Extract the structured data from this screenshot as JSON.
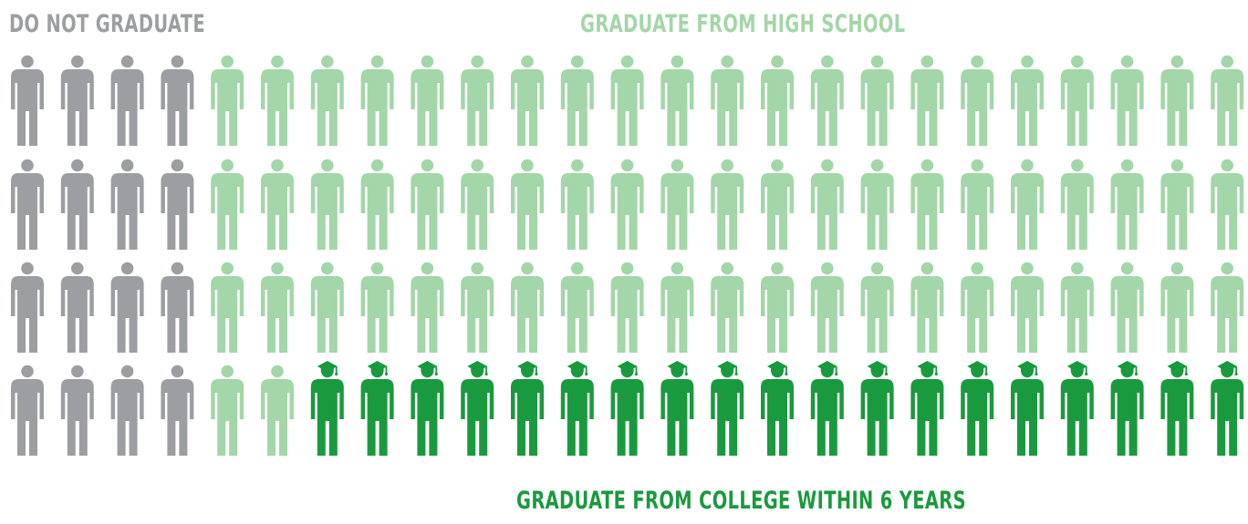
{
  "labels": {
    "do_not_graduate": "DO NOT GRADUATE",
    "graduate_high_school": "GRADUATE FROM HIGH SCHOOL",
    "graduate_college": "GRADUATE FROM COLLEGE WITHIN 6 YEARS"
  },
  "colors": {
    "do_not_graduate": "#9d9ea1",
    "graduate_high_school": "#a3d6a8",
    "graduate_college": "#1a9a3e"
  },
  "chart_data": {
    "type": "pictogram",
    "total_figures": 100,
    "rows": 4,
    "columns": 25,
    "fill_order": "column-major left to right; college graduates fill the bottom row from the right",
    "categories": [
      {
        "name": "DO NOT GRADUATE",
        "count": 16,
        "color": "#9d9ea1",
        "icon": "person-icon"
      },
      {
        "name": "GRADUATE FROM HIGH SCHOOL",
        "count": 65,
        "color": "#a3d6a8",
        "icon": "person-icon"
      },
      {
        "name": "GRADUATE FROM COLLEGE WITHIN 6 YEARS",
        "count": 19,
        "color": "#1a9a3e",
        "icon": "graduate-person-icon"
      }
    ]
  }
}
